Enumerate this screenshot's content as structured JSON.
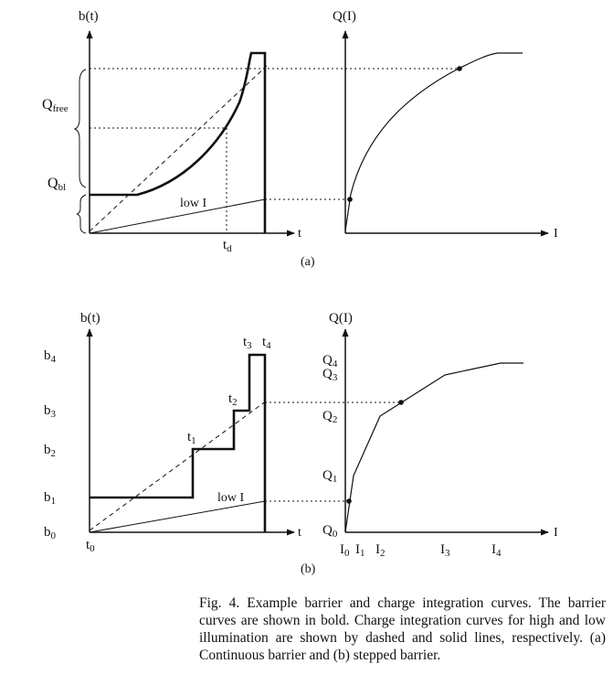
{
  "panel_a": {
    "y_axis_left": "b(t)",
    "y_axis_right": "Q(I)",
    "x_axis_left": "t",
    "x_axis_right": "I",
    "label_q_free": "Q",
    "label_q_free_sub": "free",
    "label_q_bl": "Q",
    "label_q_bl_sub": "bl",
    "label_low": "low I",
    "label_td": "t",
    "label_td_sub": "d",
    "tag": "(a)"
  },
  "panel_b": {
    "y_axis_left": "b(t)",
    "y_axis_right": "Q(I)",
    "x_axis_left": "t",
    "x_axis_right": "I",
    "b_labels": [
      {
        "main": "b",
        "sub": "4"
      },
      {
        "main": "b",
        "sub": "3"
      },
      {
        "main": "b",
        "sub": "2"
      },
      {
        "main": "b",
        "sub": "1"
      },
      {
        "main": "b",
        "sub": "0"
      }
    ],
    "t_labels": [
      {
        "main": "t",
        "sub": "0"
      },
      {
        "main": "t",
        "sub": "1"
      },
      {
        "main": "t",
        "sub": "2"
      },
      {
        "main": "t",
        "sub": "3"
      },
      {
        "main": "t",
        "sub": "4"
      }
    ],
    "q_labels": [
      {
        "main": "Q",
        "sub": "4"
      },
      {
        "main": "Q",
        "sub": "3"
      },
      {
        "main": "Q",
        "sub": "2"
      },
      {
        "main": "Q",
        "sub": "1"
      },
      {
        "main": "Q",
        "sub": "0"
      }
    ],
    "i_labels": [
      {
        "main": "I",
        "sub": "0"
      },
      {
        "main": "I",
        "sub": "1"
      },
      {
        "main": "I",
        "sub": "2"
      },
      {
        "main": "I",
        "sub": "3"
      },
      {
        "main": "I",
        "sub": "4"
      }
    ],
    "label_low": "low I",
    "tag": "(b)"
  },
  "caption": "Fig. 4.   Example barrier and charge integration curves. The barrier curves are shown in bold. Charge integration curves for high and low illumination are shown by dashed and solid lines, respectively. (a) Continuous barrier and (b) stepped barrier."
}
